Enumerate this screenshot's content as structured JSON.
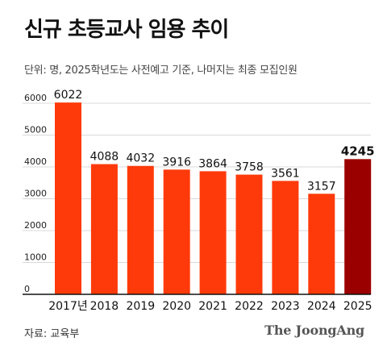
{
  "header": {
    "title": "신규 초등교사 임용 추이",
    "subtitle": "단위: 명, 2025학년도는  사전예고 기준, 나머지는 최종 모집인원"
  },
  "footer": {
    "source": "자료: 교육부",
    "brand": "The JoongAng"
  },
  "colors": {
    "bar": "#FF3A0A",
    "highlight_bar": "#9B0000",
    "grid": "#d9d9d9",
    "axis": "#111111"
  },
  "chart_data": {
    "type": "bar",
    "categories": [
      "2017년",
      "2018",
      "2019",
      "2020",
      "2021",
      "2022",
      "2023",
      "2024",
      "2025"
    ],
    "values": [
      6022,
      4088,
      4032,
      3916,
      3864,
      3758,
      3561,
      3157,
      4245
    ],
    "value_labels": [
      "6022",
      "4088",
      "4032",
      "3916",
      "3864",
      "3758",
      "3561",
      "3157",
      "4245"
    ],
    "highlight_index": 8,
    "ylim": [
      0,
      6000
    ],
    "yticks": [
      0,
      1000,
      2000,
      3000,
      4000,
      5000,
      6000
    ],
    "ytick_labels": [
      "0",
      "1000",
      "2000",
      "3000",
      "4000",
      "5000",
      "6000"
    ],
    "grid": true
  }
}
